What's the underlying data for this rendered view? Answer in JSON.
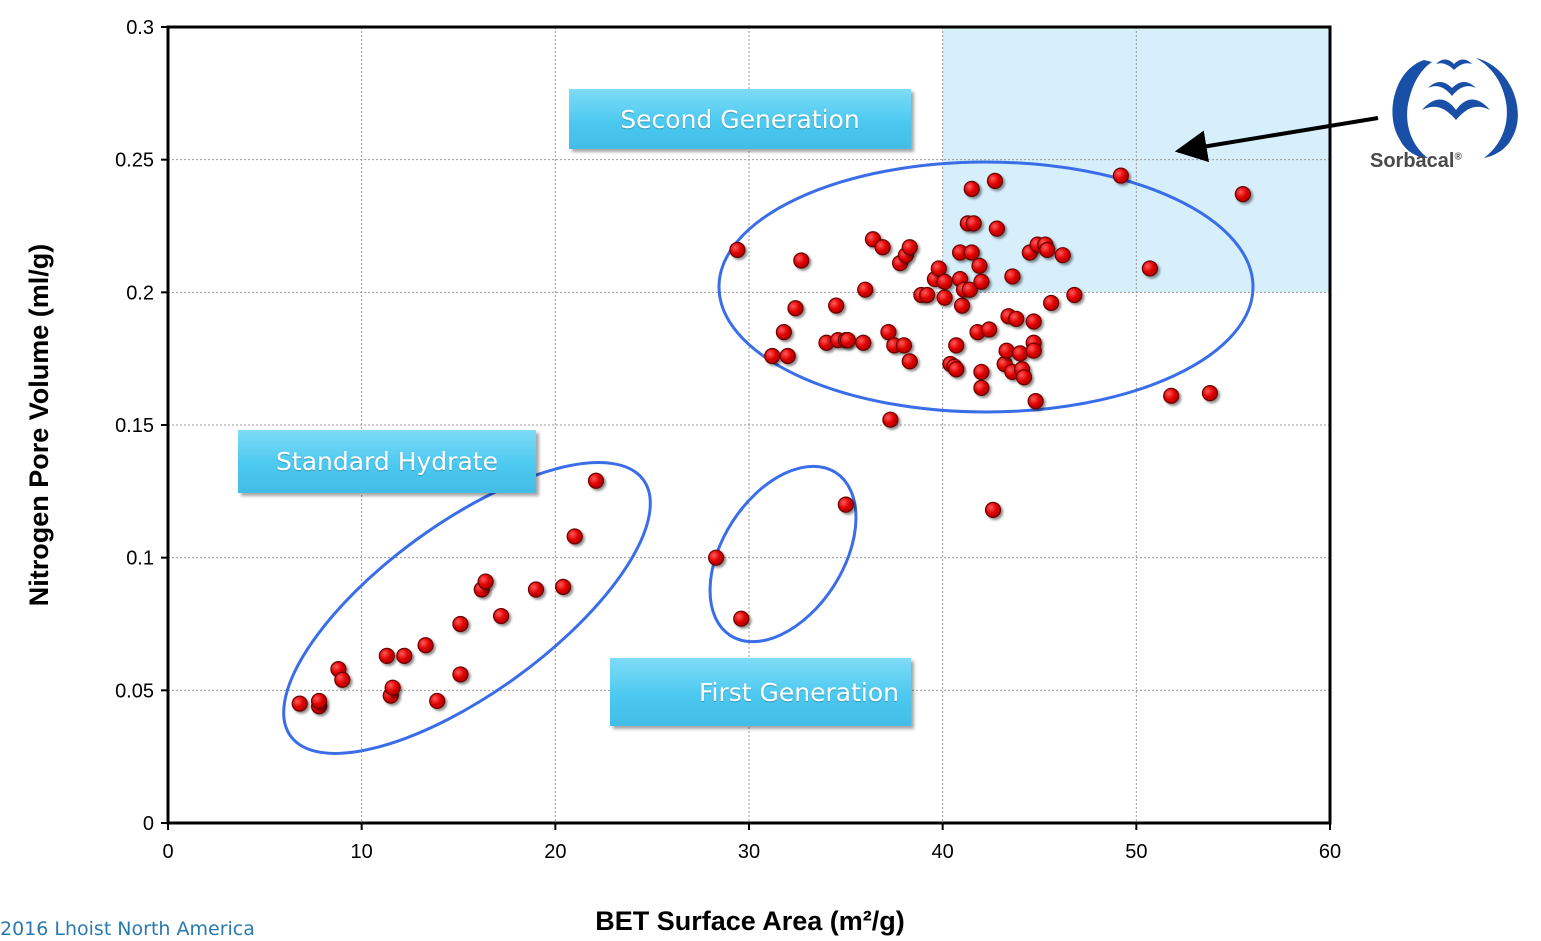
{
  "chart_data": {
    "type": "scatter",
    "xlabel": "BET Surface Area (m²/g)",
    "ylabel": "Nitrogen Pore Volume (ml/g)",
    "xlim": [
      0,
      60
    ],
    "ylim": [
      0,
      0.3
    ],
    "x_ticks": [
      "0",
      "10",
      "20",
      "30",
      "40",
      "50",
      "60"
    ],
    "y_ticks": [
      "0",
      "0.05",
      "0.1",
      "0.15",
      "0.2",
      "0.25",
      "0.3"
    ],
    "grid": true,
    "marker_color": "#e00000",
    "highlight_region": {
      "x": [
        40,
        60
      ],
      "y": [
        0.2,
        0.3
      ],
      "color": "#d6effa"
    },
    "series": [
      {
        "points": [
          [
            6.8,
            0.045
          ],
          [
            7.8,
            0.044
          ],
          [
            7.8,
            0.046
          ],
          [
            8.8,
            0.058
          ],
          [
            9.0,
            0.054
          ],
          [
            11.3,
            0.063
          ],
          [
            11.5,
            0.048
          ],
          [
            11.6,
            0.051
          ],
          [
            12.2,
            0.063
          ],
          [
            13.3,
            0.067
          ],
          [
            13.9,
            0.046
          ],
          [
            15.1,
            0.075
          ],
          [
            15.1,
            0.056
          ],
          [
            16.2,
            0.088
          ],
          [
            16.4,
            0.091
          ],
          [
            17.2,
            0.078
          ],
          [
            19.0,
            0.088
          ],
          [
            20.4,
            0.089
          ],
          [
            21.0,
            0.108
          ],
          [
            22.1,
            0.129
          ],
          [
            28.3,
            0.1
          ],
          [
            29.6,
            0.077
          ],
          [
            35.0,
            0.12
          ],
          [
            29.4,
            0.216
          ],
          [
            31.2,
            0.176
          ],
          [
            31.8,
            0.185
          ],
          [
            32.0,
            0.176
          ],
          [
            32.4,
            0.194
          ],
          [
            32.7,
            0.212
          ],
          [
            34.0,
            0.181
          ],
          [
            34.5,
            0.195
          ],
          [
            34.6,
            0.182
          ],
          [
            35.0,
            0.182
          ],
          [
            35.1,
            0.182
          ],
          [
            35.9,
            0.181
          ],
          [
            36.0,
            0.201
          ],
          [
            36.4,
            0.22
          ],
          [
            36.9,
            0.217
          ],
          [
            37.2,
            0.185
          ],
          [
            37.5,
            0.18
          ],
          [
            37.3,
            0.152
          ],
          [
            37.8,
            0.211
          ],
          [
            38.0,
            0.18
          ],
          [
            38.1,
            0.214
          ],
          [
            38.3,
            0.217
          ],
          [
            38.3,
            0.174
          ],
          [
            38.9,
            0.199
          ],
          [
            39.2,
            0.199
          ],
          [
            39.6,
            0.205
          ],
          [
            39.8,
            0.209
          ],
          [
            40.1,
            0.204
          ],
          [
            40.1,
            0.198
          ],
          [
            40.4,
            0.173
          ],
          [
            40.6,
            0.172
          ],
          [
            40.7,
            0.18
          ],
          [
            40.7,
            0.171
          ],
          [
            40.9,
            0.215
          ],
          [
            40.9,
            0.205
          ],
          [
            41.0,
            0.195
          ],
          [
            41.1,
            0.201
          ],
          [
            41.3,
            0.226
          ],
          [
            41.4,
            0.201
          ],
          [
            41.5,
            0.239
          ],
          [
            41.5,
            0.215
          ],
          [
            41.6,
            0.226
          ],
          [
            41.8,
            0.185
          ],
          [
            41.9,
            0.21
          ],
          [
            42.0,
            0.204
          ],
          [
            42.0,
            0.17
          ],
          [
            42.0,
            0.164
          ],
          [
            42.4,
            0.186
          ],
          [
            42.6,
            0.118
          ],
          [
            42.7,
            0.242
          ],
          [
            42.8,
            0.224
          ],
          [
            43.2,
            0.173
          ],
          [
            43.3,
            0.178
          ],
          [
            43.4,
            0.191
          ],
          [
            43.6,
            0.17
          ],
          [
            43.6,
            0.206
          ],
          [
            43.8,
            0.19
          ],
          [
            44.0,
            0.177
          ],
          [
            44.1,
            0.171
          ],
          [
            44.2,
            0.168
          ],
          [
            44.5,
            0.215
          ],
          [
            44.7,
            0.189
          ],
          [
            44.7,
            0.181
          ],
          [
            44.7,
            0.178
          ],
          [
            44.8,
            0.159
          ],
          [
            44.9,
            0.218
          ],
          [
            45.3,
            0.218
          ],
          [
            45.4,
            0.216
          ],
          [
            45.6,
            0.196
          ],
          [
            46.2,
            0.214
          ],
          [
            46.8,
            0.199
          ],
          [
            49.2,
            0.244
          ],
          [
            50.7,
            0.209
          ],
          [
            51.8,
            0.161
          ],
          [
            53.8,
            0.162
          ],
          [
            55.5,
            0.237
          ]
        ]
      }
    ],
    "annotations": [
      {
        "text": "Second Generation"
      },
      {
        "text": "Standard Hydrate"
      },
      {
        "text": "First Generation"
      }
    ]
  },
  "logo": {
    "text": "Sorbacal",
    "mark": "®"
  },
  "footer": {
    "copyright": "2016 Lhoist North America"
  },
  "colors": {
    "ellipse": "#3a6ee8",
    "callout": "#4cc9f0",
    "arrow": "#000000"
  }
}
